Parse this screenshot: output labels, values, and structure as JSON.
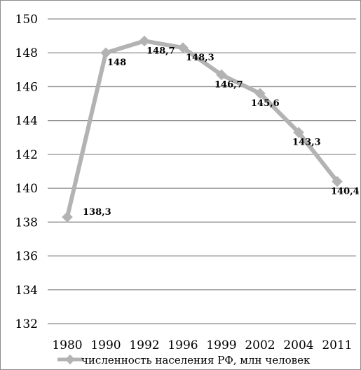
{
  "chart_data": {
    "type": "line",
    "categories": [
      "1980",
      "1990",
      "1992",
      "1996",
      "1999",
      "2002",
      "2004",
      "2011"
    ],
    "series": [
      {
        "name": "численность населения РФ, млн человек",
        "values": [
          138.3,
          148,
          148.7,
          148.3,
          146.7,
          145.6,
          143.3,
          140.4
        ],
        "labels": [
          "138,3",
          "148",
          "148,7",
          "148,3",
          "146,7",
          "145,6",
          "143,3",
          "140,4"
        ]
      }
    ],
    "ylim": [
      132,
      150
    ],
    "yticks": [
      132,
      134,
      136,
      138,
      140,
      142,
      144,
      146,
      148,
      150
    ],
    "grid": true,
    "legend_position": "bottom",
    "colors": {
      "line": "#b3b3b3",
      "grid": "#8c8c8c",
      "text": "#000000"
    }
  }
}
